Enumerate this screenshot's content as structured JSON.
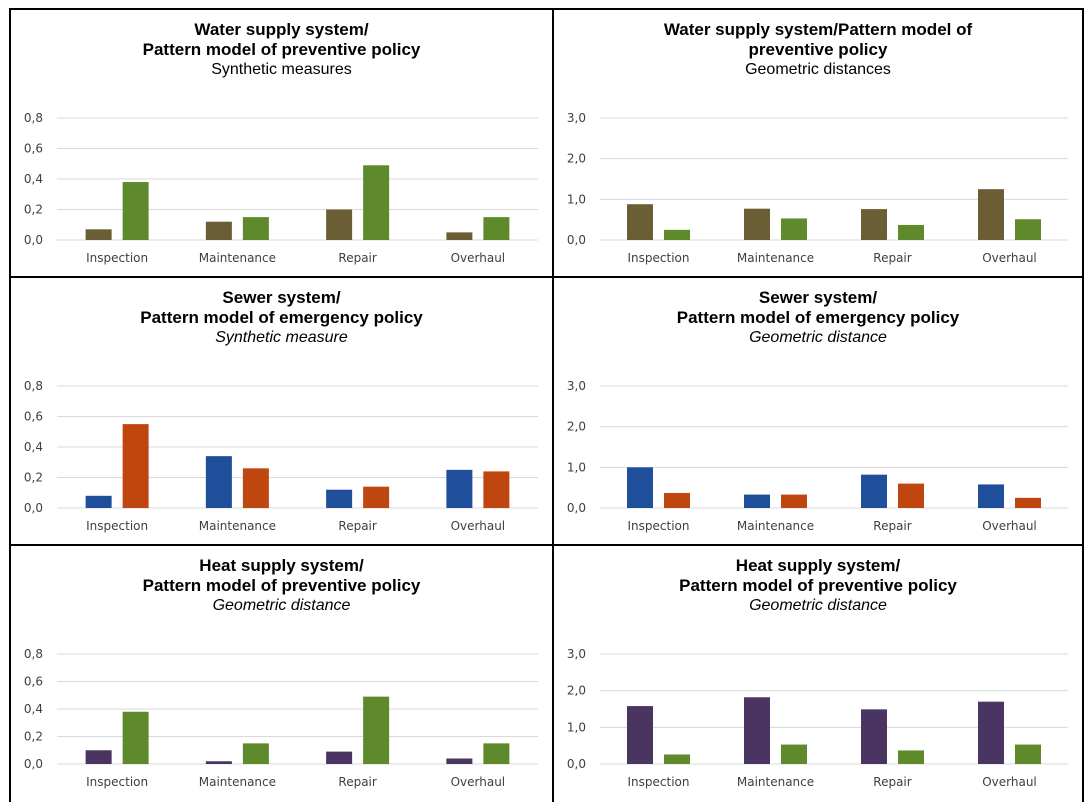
{
  "colors": {
    "water_dark": "#6b5e35",
    "green": "#5f8a2b",
    "blue": "#1f4e9b",
    "orange": "#c0460f",
    "purple": "#4a3562",
    "grid": "#d9d9d9",
    "border": "#000000"
  },
  "chart_data": [
    {
      "type": "bar",
      "title_lines": [
        "Water supply system/",
        "Pattern model of preventive policy"
      ],
      "subtitle": "Synthetic measures",
      "subtitle_italic": false,
      "categories": [
        "Inspection",
        "Maintenance",
        "Repair",
        "Overhaul"
      ],
      "series": [
        {
          "color": "#6b5e35",
          "values": [
            0.07,
            0.12,
            0.2,
            0.05
          ]
        },
        {
          "color": "#5f8a2b",
          "values": [
            0.38,
            0.15,
            0.49,
            0.15
          ]
        }
      ],
      "ylim": [
        0,
        0.8
      ],
      "yticks": [
        "0,0",
        "0,2",
        "0,4",
        "0,6",
        "0,8"
      ],
      "ytick_values": [
        0,
        0.2,
        0.4,
        0.6,
        0.8
      ],
      "grid": true
    },
    {
      "type": "bar",
      "title_lines": [
        "Water supply system/Pattern model of",
        "preventive policy"
      ],
      "subtitle": "Geometric distances",
      "subtitle_italic": false,
      "categories": [
        "Inspection",
        "Maintenance",
        "Repair",
        "Overhaul"
      ],
      "series": [
        {
          "color": "#6b5e35",
          "values": [
            0.88,
            0.77,
            0.76,
            1.25
          ]
        },
        {
          "color": "#5f8a2b",
          "values": [
            0.25,
            0.53,
            0.37,
            0.51
          ]
        }
      ],
      "ylim": [
        0,
        3
      ],
      "yticks": [
        "0,0",
        "1,0",
        "2,0",
        "3,0"
      ],
      "ytick_values": [
        0,
        1,
        2,
        3
      ],
      "grid": true
    },
    {
      "type": "bar",
      "title_lines": [
        "Sewer system/",
        "Pattern model of emergency policy"
      ],
      "subtitle": "Synthetic measure",
      "subtitle_italic": true,
      "categories": [
        "Inspection",
        "Maintenance",
        "Repair",
        "Overhaul"
      ],
      "series": [
        {
          "color": "#1f4e9b",
          "values": [
            0.08,
            0.34,
            0.12,
            0.25
          ]
        },
        {
          "color": "#c0460f",
          "values": [
            0.55,
            0.26,
            0.14,
            0.24
          ]
        }
      ],
      "ylim": [
        0,
        0.8
      ],
      "yticks": [
        "0,0",
        "0,2",
        "0,4",
        "0,6",
        "0,8"
      ],
      "ytick_values": [
        0,
        0.2,
        0.4,
        0.6,
        0.8
      ],
      "grid": true
    },
    {
      "type": "bar",
      "title_lines": [
        "Sewer system/",
        "Pattern model of emergency policy"
      ],
      "subtitle": "Geometric distance",
      "subtitle_italic": true,
      "categories": [
        "Inspection",
        "Maintenance",
        "Repair",
        "Overhaul"
      ],
      "series": [
        {
          "color": "#1f4e9b",
          "values": [
            1.0,
            0.33,
            0.82,
            0.58
          ]
        },
        {
          "color": "#c0460f",
          "values": [
            0.37,
            0.33,
            0.6,
            0.25
          ]
        }
      ],
      "ylim": [
        0,
        3
      ],
      "yticks": [
        "0,0",
        "1,0",
        "2,0",
        "3,0"
      ],
      "ytick_values": [
        0,
        1,
        2,
        3
      ],
      "grid": true
    },
    {
      "type": "bar",
      "title_lines": [
        "Heat supply system/",
        "Pattern model of preventive policy"
      ],
      "subtitle": "Geometric distance",
      "subtitle_italic": true,
      "categories": [
        "Inspection",
        "Maintenance",
        "Repair",
        "Overhaul"
      ],
      "series": [
        {
          "color": "#4a3562",
          "values": [
            0.1,
            0.02,
            0.09,
            0.04
          ]
        },
        {
          "color": "#5f8a2b",
          "values": [
            0.38,
            0.15,
            0.49,
            0.15
          ]
        }
      ],
      "ylim": [
        0,
        0.8
      ],
      "yticks": [
        "0,0",
        "0,2",
        "0,4",
        "0,6",
        "0,8"
      ],
      "ytick_values": [
        0,
        0.2,
        0.4,
        0.6,
        0.8
      ],
      "grid": true
    },
    {
      "type": "bar",
      "title_lines": [
        "Heat supply system/",
        "Pattern model of preventive policy"
      ],
      "subtitle": "Geometric distance",
      "subtitle_italic": true,
      "categories": [
        "Inspection",
        "Maintenance",
        "Repair",
        "Overhaul"
      ],
      "series": [
        {
          "color": "#4a3562",
          "values": [
            1.58,
            1.82,
            1.49,
            1.7
          ]
        },
        {
          "color": "#5f8a2b",
          "values": [
            0.26,
            0.53,
            0.37,
            0.53
          ]
        }
      ],
      "ylim": [
        0,
        3
      ],
      "yticks": [
        "0,0",
        "1,0",
        "2,0",
        "3,0"
      ],
      "ytick_values": [
        0,
        1,
        2,
        3
      ],
      "grid": true
    }
  ]
}
